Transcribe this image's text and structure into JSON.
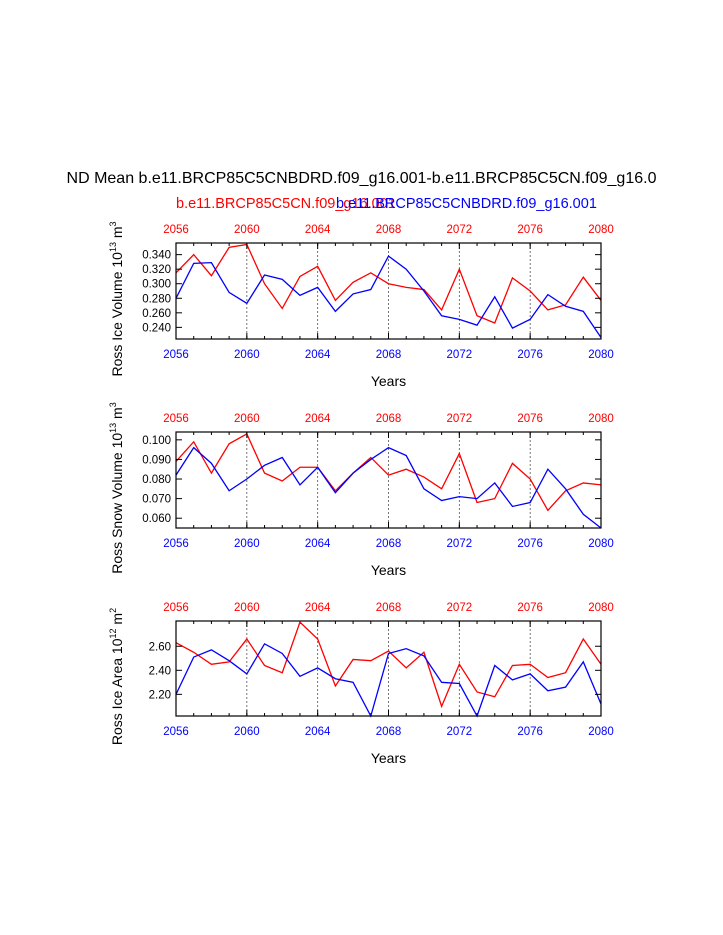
{
  "title": "ND Mean b.e11.BRCP85C5CNBDRD.f09_g16.001-b.e11.BRCP85C5CN.f09_g16.0",
  "legend": {
    "red_label": "b.e11.BRCP85C5CN.f09_g16.001",
    "blue_label": "b.e11.BRCP85C5CNBDRD.f09_g16.001",
    "red_color": "#ff0000",
    "blue_color": "#0000ff"
  },
  "chart_data": [
    {
      "type": "line",
      "ylabel": "Ross Ice Volume 10^13 m^3",
      "ylabel_main": "Ross Ice Volume 10",
      "ylabel_exp": "13",
      "ylabel_unit": " m",
      "ylabel_unit_exp": "3",
      "xlabel": "Years",
      "xlim": [
        2056,
        2080
      ],
      "ylim": [
        0.224,
        0.356
      ],
      "x_ticks": [
        "2056",
        "2060",
        "2064",
        "2068",
        "2072",
        "2076",
        "2080"
      ],
      "y_ticks": [
        "0.240",
        "0.260",
        "0.280",
        "0.300",
        "0.320",
        "0.340"
      ],
      "x": [
        2056,
        2057,
        2058,
        2059,
        2060,
        2061,
        2062,
        2063,
        2064,
        2065,
        2066,
        2067,
        2068,
        2069,
        2070,
        2071,
        2072,
        2073,
        2074,
        2075,
        2076,
        2077,
        2078,
        2079,
        2080
      ],
      "series": [
        {
          "name": "b.e11.BRCP85C5CN.f09_g16.001",
          "color": "#ff0000",
          "values": [
            0.315,
            0.34,
            0.311,
            0.35,
            0.354,
            0.3,
            0.266,
            0.31,
            0.324,
            0.277,
            0.302,
            0.315,
            0.3,
            0.295,
            0.292,
            0.264,
            0.32,
            0.256,
            0.246,
            0.308,
            0.29,
            0.264,
            0.271,
            0.309,
            0.277
          ]
        },
        {
          "name": "b.e11.BRCP85C5CNBDRD.f09_g16.001",
          "color": "#0000ff",
          "values": [
            0.28,
            0.328,
            0.329,
            0.288,
            0.273,
            0.312,
            0.306,
            0.284,
            0.295,
            0.262,
            0.286,
            0.292,
            0.338,
            0.32,
            0.29,
            0.256,
            0.251,
            0.243,
            0.282,
            0.239,
            0.251,
            0.285,
            0.269,
            0.262,
            0.226
          ]
        }
      ]
    },
    {
      "type": "line",
      "ylabel": "Ross Snow Volume 10^13 m^3",
      "ylabel_main": "Ross Snow Volume 10",
      "ylabel_exp": "13",
      "ylabel_unit": " m",
      "ylabel_unit_exp": "3",
      "xlabel": "Years",
      "xlim": [
        2056,
        2080
      ],
      "ylim": [
        0.055,
        0.104
      ],
      "x_ticks": [
        "2056",
        "2060",
        "2064",
        "2068",
        "2072",
        "2076",
        "2080"
      ],
      "y_ticks": [
        "0.060",
        "0.070",
        "0.080",
        "0.090",
        "0.100"
      ],
      "x": [
        2056,
        2057,
        2058,
        2059,
        2060,
        2061,
        2062,
        2063,
        2064,
        2065,
        2066,
        2067,
        2068,
        2069,
        2070,
        2071,
        2072,
        2073,
        2074,
        2075,
        2076,
        2077,
        2078,
        2079,
        2080
      ],
      "series": [
        {
          "name": "b.e11.BRCP85C5CN.f09_g16.001",
          "color": "#ff0000",
          "values": [
            0.089,
            0.099,
            0.083,
            0.098,
            0.103,
            0.083,
            0.079,
            0.086,
            0.086,
            0.074,
            0.083,
            0.091,
            0.082,
            0.085,
            0.081,
            0.075,
            0.093,
            0.068,
            0.07,
            0.088,
            0.08,
            0.064,
            0.074,
            0.078,
            0.077
          ]
        },
        {
          "name": "b.e11.BRCP85C5CNBDRD.f09_g16.001",
          "color": "#0000ff",
          "values": [
            0.082,
            0.096,
            0.088,
            0.074,
            0.08,
            0.087,
            0.091,
            0.077,
            0.086,
            0.073,
            0.083,
            0.09,
            0.096,
            0.092,
            0.075,
            0.069,
            0.071,
            0.07,
            0.078,
            0.066,
            0.068,
            0.085,
            0.075,
            0.062,
            0.055
          ]
        }
      ]
    },
    {
      "type": "line",
      "ylabel": "Ross Ice Area 10^12 m^2",
      "ylabel_main": "Ross Ice Area 10",
      "ylabel_exp": "12",
      "ylabel_unit": " m",
      "ylabel_unit_exp": "2",
      "xlabel": "Years",
      "xlim": [
        2056,
        2080
      ],
      "ylim": [
        2.02,
        2.81
      ],
      "x_ticks": [
        "2056",
        "2060",
        "2064",
        "2068",
        "2072",
        "2076",
        "2080"
      ],
      "y_ticks": [
        "2.20",
        "2.40",
        "2.60"
      ],
      "x": [
        2056,
        2057,
        2058,
        2059,
        2060,
        2061,
        2062,
        2063,
        2064,
        2065,
        2066,
        2067,
        2068,
        2069,
        2070,
        2071,
        2072,
        2073,
        2074,
        2075,
        2076,
        2077,
        2078,
        2079,
        2080
      ],
      "series": [
        {
          "name": "b.e11.BRCP85C5CN.f09_g16.001",
          "color": "#ff0000",
          "values": [
            2.63,
            2.55,
            2.45,
            2.47,
            2.66,
            2.44,
            2.38,
            2.8,
            2.66,
            2.27,
            2.49,
            2.48,
            2.56,
            2.42,
            2.55,
            2.1,
            2.45,
            2.22,
            2.18,
            2.44,
            2.45,
            2.34,
            2.38,
            2.66,
            2.45
          ]
        },
        {
          "name": "b.e11.BRCP85C5CNBDRD.f09_g16.001",
          "color": "#0000ff",
          "values": [
            2.2,
            2.51,
            2.57,
            2.48,
            2.37,
            2.62,
            2.54,
            2.35,
            2.42,
            2.33,
            2.3,
            2.02,
            2.54,
            2.58,
            2.52,
            2.3,
            2.29,
            2.02,
            2.44,
            2.32,
            2.37,
            2.23,
            2.26,
            2.47,
            2.12
          ]
        }
      ]
    }
  ]
}
